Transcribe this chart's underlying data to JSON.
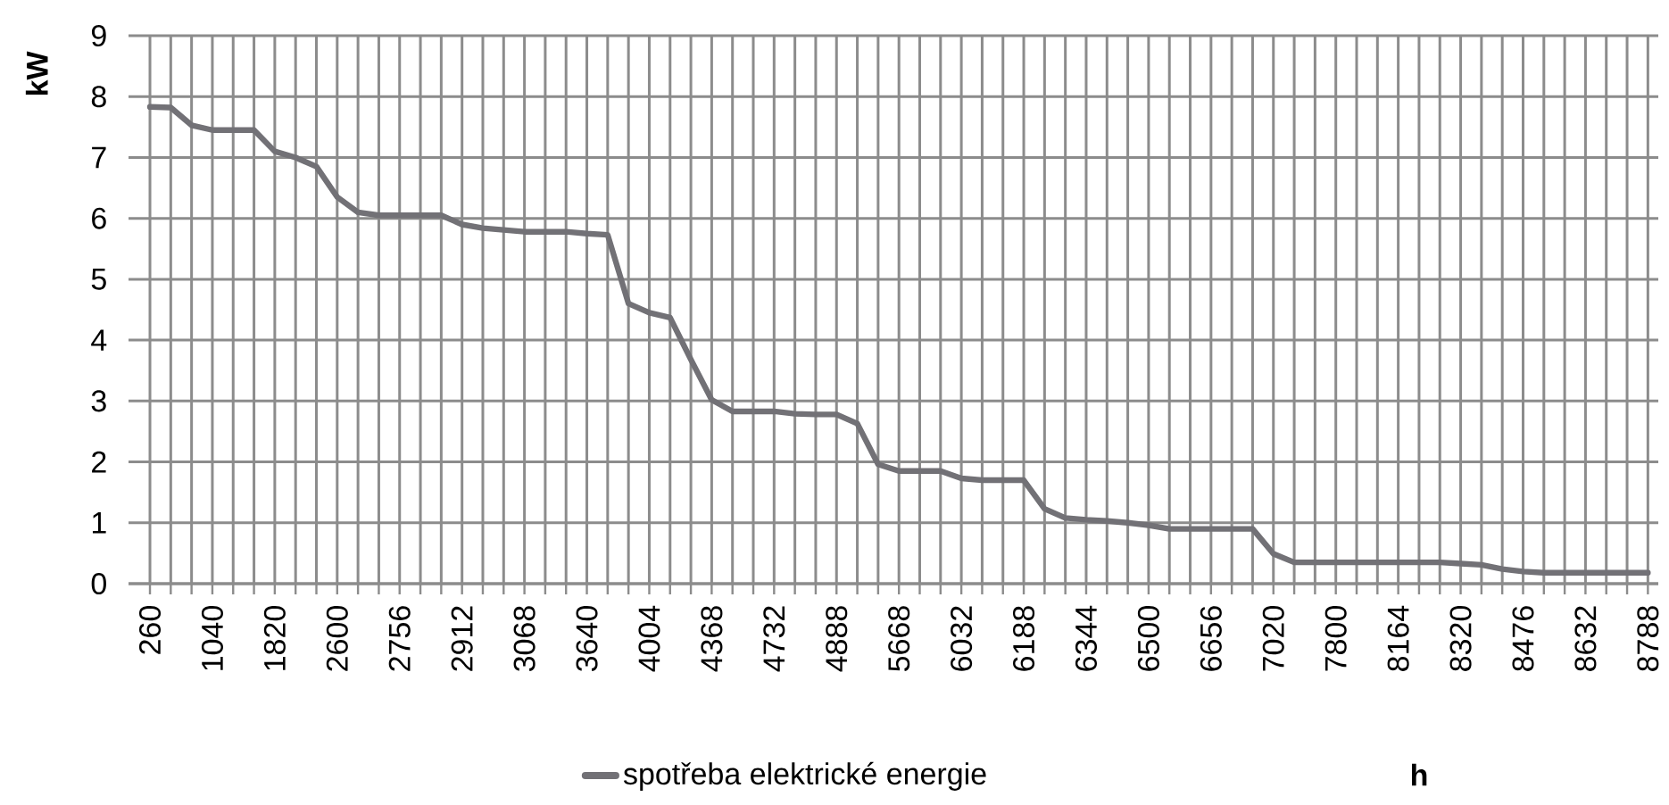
{
  "chart_data": {
    "type": "line",
    "xlabel": "h",
    "ylabel": "kW",
    "categories": [
      "260",
      null,
      null,
      "1040",
      null,
      null,
      "1820",
      null,
      null,
      "2600",
      null,
      null,
      "2756",
      null,
      null,
      "2912",
      null,
      null,
      "3068",
      null,
      null,
      "3640",
      null,
      null,
      "4004",
      null,
      null,
      "4368",
      null,
      null,
      "4732",
      null,
      null,
      "4888",
      null,
      null,
      "5668",
      null,
      null,
      "6032",
      null,
      null,
      "6188",
      null,
      null,
      "6344",
      null,
      null,
      "6500",
      null,
      null,
      "6656",
      null,
      null,
      "7020",
      null,
      null,
      "7800",
      null,
      null,
      "8164",
      null,
      null,
      "8320",
      null,
      null,
      "8476",
      null,
      null,
      "8632",
      null,
      null,
      "8788"
    ],
    "series": [
      {
        "name": "spotřeba elektrické energie",
        "color": "#727176",
        "values": [
          7.83,
          7.82,
          7.53,
          7.45,
          7.45,
          7.45,
          7.1,
          7.0,
          6.85,
          6.35,
          6.1,
          6.05,
          6.05,
          6.05,
          6.05,
          5.9,
          5.84,
          5.81,
          5.78,
          5.78,
          5.78,
          5.75,
          5.73,
          4.6,
          4.45,
          4.37,
          3.68,
          3.02,
          2.83,
          2.83,
          2.83,
          2.79,
          2.78,
          2.78,
          2.63,
          1.96,
          1.85,
          1.85,
          1.85,
          1.73,
          1.7,
          1.7,
          1.7,
          1.23,
          1.08,
          1.05,
          1.03,
          1.0,
          0.96,
          0.9,
          0.9,
          0.9,
          0.9,
          0.9,
          0.49,
          0.35,
          0.35,
          0.35,
          0.35,
          0.35,
          0.35,
          0.35,
          0.35,
          0.33,
          0.31,
          0.24,
          0.2,
          0.18,
          0.18,
          0.18,
          0.18,
          0.18,
          0.18
        ]
      }
    ],
    "ylim": [
      0,
      9
    ],
    "yticks": [
      0,
      1,
      2,
      3,
      4,
      5,
      6,
      7,
      8,
      9
    ],
    "grid": true,
    "legend": "bottom",
    "marker": "none",
    "line_style": "solid"
  }
}
